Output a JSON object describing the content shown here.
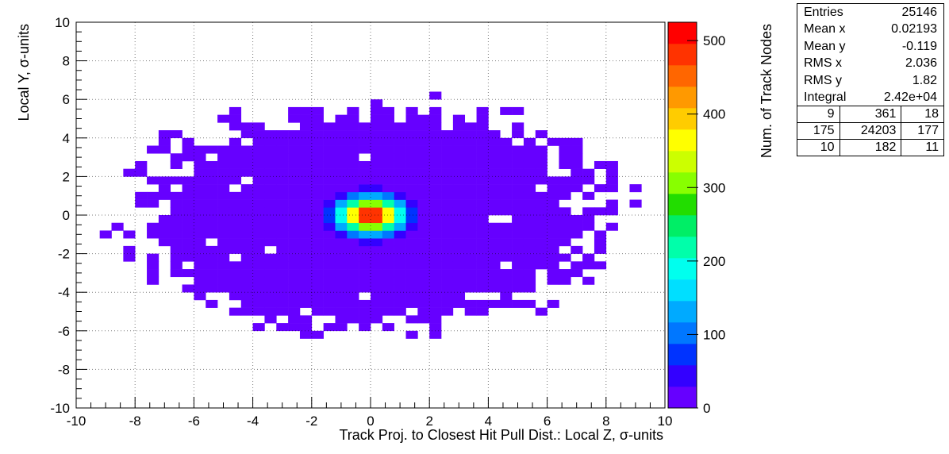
{
  "chart_data": {
    "type": "heatmap",
    "xlabel": "Track Proj. to Closest Hit Pull Dist.: Local Z, σ-units",
    "ylabel": "Local Y, σ-units",
    "zlabel": "Num. of Track Nodes",
    "xlim": [
      -10,
      10
    ],
    "ylim": [
      -10,
      10
    ],
    "zlim": [
      0,
      525
    ],
    "x_ticks": [
      -10,
      -8,
      -6,
      -4,
      -2,
      0,
      2,
      4,
      6,
      8,
      10
    ],
    "y_ticks": [
      -10,
      -8,
      -6,
      -4,
      -2,
      0,
      2,
      4,
      6,
      8,
      10
    ],
    "z_ticks": [
      0,
      100,
      200,
      300,
      400,
      500
    ],
    "grid": true,
    "bins": [
      50,
      50
    ],
    "peak": {
      "x": 0,
      "y": 0,
      "count": 520
    },
    "colormap": [
      "#6600ff",
      "#3300ff",
      "#0033ff",
      "#0077ff",
      "#00aaff",
      "#00dfff",
      "#00ffee",
      "#00ffaa",
      "#00ee66",
      "#22dd00",
      "#88ff00",
      "#ccff00",
      "#ffff00",
      "#ffcc00",
      "#ff9900",
      "#ff6600",
      "#ff3300",
      "#ff0000"
    ]
  },
  "stats": {
    "entries_label": "Entries",
    "entries": "25146",
    "meanx_label": "Mean x",
    "meanx": "0.02193",
    "meany_label": "Mean y",
    "meany": "-0.119",
    "rmsx_label": "RMS x",
    "rmsx": "2.036",
    "rmsy_label": "RMS y",
    "rmsy": "1.82",
    "integral_label": "Integral",
    "integral": "2.42e+04",
    "grid": [
      [
        "9",
        "361",
        "18"
      ],
      [
        "175",
        "24203",
        "177"
      ],
      [
        "10",
        "182",
        "11"
      ]
    ]
  }
}
